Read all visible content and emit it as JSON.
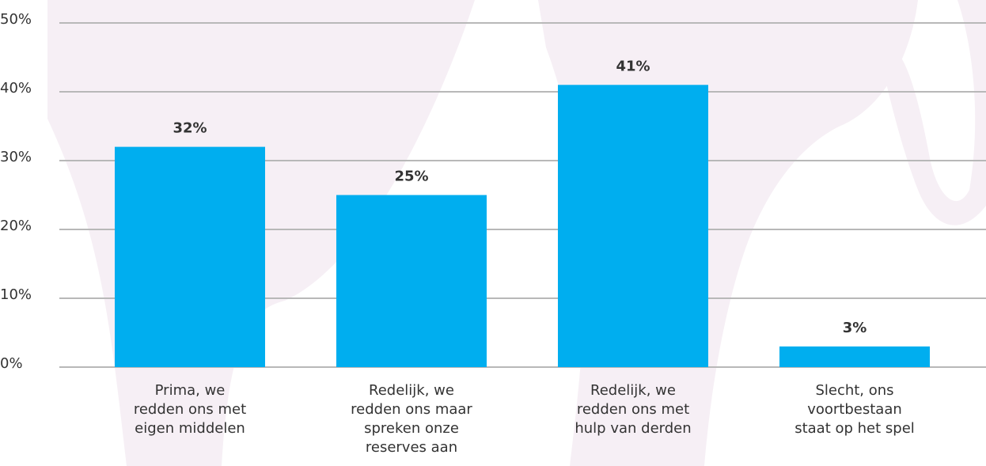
{
  "chart_data": {
    "type": "bar",
    "categories": [
      [
        "Prima, we",
        "redden ons met",
        "eigen middelen"
      ],
      [
        "Redelijk, we",
        "redden ons maar",
        "spreken onze",
        "reserves aan"
      ],
      [
        "Redelijk, we",
        "redden ons met",
        "hulp van derden"
      ],
      [
        "Slecht, ons",
        "voortbestaan",
        "staat op het spel"
      ]
    ],
    "values": [
      32,
      25,
      41,
      3
    ],
    "value_labels": [
      "32%",
      "25%",
      "41%",
      "3%"
    ],
    "color": "#00aeef",
    "ylim": [
      0,
      50
    ],
    "yticks": [
      {
        "value": 0,
        "label": "0%"
      },
      {
        "value": 10,
        "label": "10%"
      },
      {
        "value": 20,
        "label": "20%"
      },
      {
        "value": 30,
        "label": "30%"
      },
      {
        "value": 40,
        "label": "40%"
      },
      {
        "value": 50,
        "label": "50%"
      }
    ],
    "grid": true
  }
}
